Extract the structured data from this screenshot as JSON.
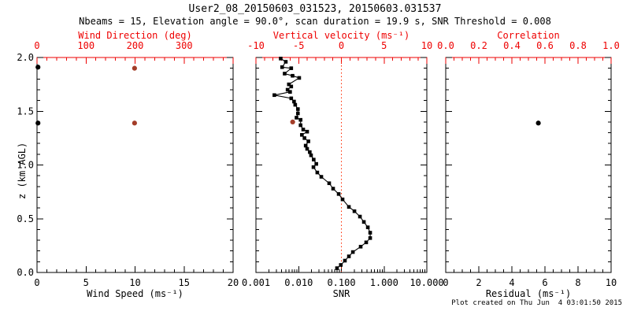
{
  "header": {
    "title": "User2_08_20150603_031523, 20150603.031537",
    "subtitle": "Nbeams = 15, Elevation angle = 90.0°, scan duration = 19.9 s, SNR Threshold = 0.008"
  },
  "footer": {
    "created": "Plot created on Thu Jun  4 03:01:50 2015"
  },
  "colors": {
    "frame": "#000000",
    "text": "#000000",
    "axis_red": "#ee0000",
    "marker_brown": "#a33d28",
    "marker_black": "#000000",
    "ref_line_red": "#ff2a00"
  },
  "y_axis": {
    "label": "z (km AGL)",
    "lim": [
      0,
      2
    ],
    "tick_labels": [
      {
        "v": 2.0,
        "t": "2.0"
      },
      {
        "v": 1.5,
        "t": "1.5"
      },
      {
        "v": 1.0,
        "t": "1.0"
      },
      {
        "v": 0.5,
        "t": "0.5"
      },
      {
        "v": 0.0,
        "t": "0.0"
      }
    ],
    "minor_step": 0.1
  },
  "chart_data": [
    {
      "id": "wind",
      "type": "scatter",
      "bottom_axis": {
        "label": "Wind Speed (ms⁻¹)",
        "lim": [
          0,
          20
        ],
        "ticks_major": [
          0,
          5,
          10,
          15,
          20
        ],
        "minor_step": 1,
        "tick_labels": [
          {
            "v": 0,
            "t": "0"
          },
          {
            "v": 5,
            "t": "5"
          },
          {
            "v": 10,
            "t": "10"
          },
          {
            "v": 15,
            "t": "15"
          },
          {
            "v": 20,
            "t": "20"
          }
        ]
      },
      "top_axis": {
        "label": "Wind Direction (deg)",
        "lim": [
          0,
          400
        ],
        "ticks_major": [
          0,
          100,
          200,
          300,
          400
        ],
        "minor_step": 20,
        "tick_labels": [
          {
            "v": 0,
            "t": "0"
          },
          {
            "v": 100,
            "t": "100"
          },
          {
            "v": 200,
            "t": "200"
          },
          {
            "v": 300,
            "t": "300"
          }
        ]
      },
      "series": [
        {
          "name": "wind-speed-points",
          "axis": "bottom",
          "marker": "dot",
          "color_key": "marker_black",
          "points": [
            [
              0.1,
              1.91
            ],
            [
              0.1,
              1.39
            ]
          ]
        },
        {
          "name": "wind-direction-points",
          "axis": "top",
          "marker": "dot",
          "color_key": "marker_brown",
          "points": [
            [
              199,
              1.9
            ],
            [
              199,
              1.39
            ]
          ]
        }
      ]
    },
    {
      "id": "snr-velocity",
      "type": "line",
      "bottom_axis": {
        "label": "SNR",
        "lim": [
          0.001,
          10
        ],
        "log": true,
        "ticks_major": [
          0.001,
          0.01,
          0.1,
          1,
          10
        ],
        "tick_labels": [
          {
            "v": 0.001,
            "t": "0.001"
          },
          {
            "v": 0.01,
            "t": "0.010"
          },
          {
            "v": 0.1,
            "t": "0.100"
          },
          {
            "v": 1,
            "t": "1.000"
          },
          {
            "v": 10,
            "t": "10.000"
          }
        ]
      },
      "top_axis": {
        "label": "Vertical velocity (ms⁻¹)",
        "lim": [
          -10,
          10
        ],
        "ticks_major": [
          -10,
          -5,
          0,
          5,
          10
        ],
        "minor_step": 1,
        "tick_labels": [
          {
            "v": -10,
            "t": "-10"
          },
          {
            "v": -5,
            "t": "-5"
          },
          {
            "v": 0,
            "t": "0"
          },
          {
            "v": 5,
            "t": "5"
          },
          {
            "v": 10,
            "t": "10"
          }
        ]
      },
      "ref_line": {
        "axis": "top",
        "value": 0,
        "style": "dotted",
        "color_key": "ref_line_red"
      },
      "series": [
        {
          "name": "snr-profile",
          "axis": "bottom",
          "marker": "square",
          "line": true,
          "color_key": "marker_black",
          "points": [
            [
              0.0038,
              1.99
            ],
            [
              0.005,
              1.96
            ],
            [
              0.0041,
              1.91
            ],
            [
              0.0067,
              1.9
            ],
            [
              0.0047,
              1.85
            ],
            [
              0.0072,
              1.83
            ],
            [
              0.0103,
              1.81
            ],
            [
              0.0059,
              1.75
            ],
            [
              0.0067,
              1.73
            ],
            [
              0.0055,
              1.7
            ],
            [
              0.0063,
              1.68
            ],
            [
              0.0027,
              1.65
            ],
            [
              0.0067,
              1.62
            ],
            [
              0.0078,
              1.59
            ],
            [
              0.0083,
              1.56
            ],
            [
              0.0096,
              1.52
            ],
            [
              0.0096,
              1.48
            ],
            [
              0.0089,
              1.44
            ],
            [
              0.0111,
              1.42
            ],
            [
              0.0111,
              1.37
            ],
            [
              0.0128,
              1.33
            ],
            [
              0.0158,
              1.31
            ],
            [
              0.0119,
              1.28
            ],
            [
              0.0137,
              1.25
            ],
            [
              0.0169,
              1.22
            ],
            [
              0.0146,
              1.18
            ],
            [
              0.0158,
              1.15
            ],
            [
              0.0182,
              1.12
            ],
            [
              0.0195,
              1.09
            ],
            [
              0.0225,
              1.05
            ],
            [
              0.0259,
              1.01
            ],
            [
              0.0222,
              0.98
            ],
            [
              0.0273,
              0.93
            ],
            [
              0.0339,
              0.89
            ],
            [
              0.0518,
              0.83
            ],
            [
              0.0641,
              0.78
            ],
            [
              0.0864,
              0.73
            ],
            [
              0.1066,
              0.68
            ],
            [
              0.15,
              0.61
            ],
            [
              0.202,
              0.57
            ],
            [
              0.272,
              0.52
            ],
            [
              0.336,
              0.47
            ],
            [
              0.416,
              0.42
            ],
            [
              0.472,
              0.37
            ],
            [
              0.472,
              0.32
            ],
            [
              0.381,
              0.28
            ],
            [
              0.283,
              0.24
            ],
            [
              0.186,
              0.19
            ],
            [
              0.15,
              0.15
            ],
            [
              0.121,
              0.11
            ],
            [
              0.097,
              0.07
            ],
            [
              0.079,
              0.04
            ]
          ]
        },
        {
          "name": "vertical-velocity-points",
          "axis": "top",
          "marker": "dot",
          "color_key": "marker_brown",
          "points": [
            [
              -5.7,
              1.4
            ]
          ]
        }
      ]
    },
    {
      "id": "residual-correlation",
      "type": "scatter",
      "bottom_axis": {
        "label": "Residual (ms⁻¹)",
        "lim": [
          0,
          10
        ],
        "ticks_major": [
          0,
          2,
          4,
          6,
          8,
          10
        ],
        "minor_step": 0.5,
        "tick_labels": [
          {
            "v": 0,
            "t": "0"
          },
          {
            "v": 2,
            "t": "2"
          },
          {
            "v": 4,
            "t": "4"
          },
          {
            "v": 6,
            "t": "6"
          },
          {
            "v": 8,
            "t": "8"
          },
          {
            "v": 10,
            "t": "10"
          }
        ]
      },
      "top_axis": {
        "label": "Correlation",
        "lim": [
          0,
          1
        ],
        "ticks_major": [
          0,
          0.2,
          0.4,
          0.6,
          0.8,
          1.0
        ],
        "minor_step": 0.05,
        "tick_labels": [
          {
            "v": 0.0,
            "t": "0.0"
          },
          {
            "v": 0.2,
            "t": "0.2"
          },
          {
            "v": 0.4,
            "t": "0.4"
          },
          {
            "v": 0.6,
            "t": "0.6"
          },
          {
            "v": 0.8,
            "t": "0.8"
          },
          {
            "v": 1.0,
            "t": "1.0"
          }
        ]
      },
      "series": [
        {
          "name": "residual-points",
          "axis": "bottom",
          "marker": "dot",
          "color_key": "marker_black",
          "points": [
            [
              5.6,
              1.39
            ]
          ]
        }
      ]
    }
  ]
}
